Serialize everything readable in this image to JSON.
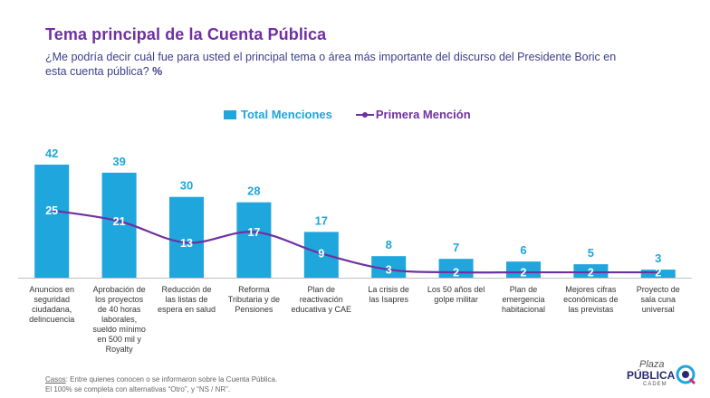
{
  "title": "Tema principal de la Cuenta Pública",
  "subtitle": "¿Me podría decir cuál fue para usted el principal tema o área más importante del discurso del Presidente Boric en esta cuenta pública?",
  "subtitle_unit": "%",
  "colors": {
    "bars": "#1ea6dd",
    "line": "#7030a0",
    "title": "#7030a0",
    "subtitle": "#3b3f8a"
  },
  "chart_data": {
    "type": "bar",
    "categories": [
      "Anuncios en seguridad ciudadana, delincuencia",
      "Aprobación de los proyectos de 40 horas laborales, sueldo mínimo en 500 mil y Royalty",
      "Reducción de las listas de espera en salud",
      "Reforma Tributaria y de Pensiones",
      "Plan de reactivación educativa y CAE",
      "La crisis de las Isapres",
      "Los 50 años del golpe militar",
      "Plan de emergencia habitacional",
      "Mejores cifras económicas de las previstas",
      "Proyecto de sala cuna universal"
    ],
    "series": [
      {
        "name": "Total Menciones",
        "type": "bar",
        "values": [
          42,
          39,
          30,
          28,
          17,
          8,
          7,
          6,
          5,
          3
        ]
      },
      {
        "name": "Primera Mención",
        "type": "line",
        "values": [
          25,
          21,
          13,
          17,
          9,
          3,
          2,
          2,
          2,
          2
        ]
      }
    ],
    "ylim": [
      0,
      42
    ],
    "xlabel": "",
    "ylabel": "",
    "legend": "top-center"
  },
  "footer": {
    "casos_label": "Casos",
    "casos_text": ": Entre quienes conocen o se informaron sobre la Cuenta Pública.",
    "note": "El 100% se completa con alternativas “Otro”, y “NS / NR”."
  },
  "logo": {
    "line1": "Plaza",
    "line2": "PÚBLICA",
    "line3": "CADEM"
  }
}
